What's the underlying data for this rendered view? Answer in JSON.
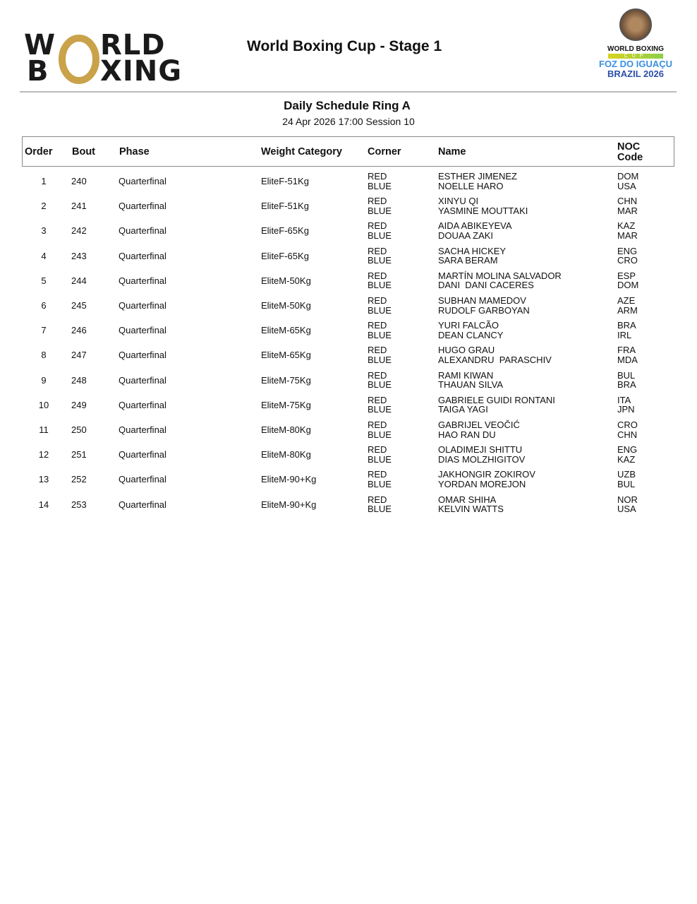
{
  "header": {
    "logo_text": [
      "W",
      "RLD",
      "B",
      "XING"
    ],
    "title": "World Boxing Cup - Stage 1",
    "event_logo": {
      "line1": "WORLD BOXING",
      "line2": "CUP",
      "line3": "FOZ DO IGUAÇU",
      "line4": "BRAZIL 2026"
    },
    "brand_gold": "#c9a24a"
  },
  "schedule": {
    "title": "Daily Schedule Ring A",
    "subtitle": "24 Apr 2026 17:00 Session 10"
  },
  "columns": {
    "order": "Order",
    "bout": "Bout",
    "phase": "Phase",
    "weight": "Weight Category",
    "corner": "Corner",
    "name": "Name",
    "noc1": "NOC",
    "noc2": "Code"
  },
  "rows": [
    {
      "order": "1",
      "bout": "240",
      "phase": "Quarterfinal",
      "weight": "EliteF-51Kg",
      "red": "RED",
      "blue": "BLUE",
      "red_name": "ESTHER JIMENEZ",
      "blue_name": "NOELLE HARO",
      "red_noc": "DOM",
      "blue_noc": "USA"
    },
    {
      "order": "2",
      "bout": "241",
      "phase": "Quarterfinal",
      "weight": "EliteF-51Kg",
      "red": "RED",
      "blue": "BLUE",
      "red_name": "XINYU QI",
      "blue_name": "YASMINE MOUTTAKI",
      "red_noc": "CHN",
      "blue_noc": "MAR"
    },
    {
      "order": "3",
      "bout": "242",
      "phase": "Quarterfinal",
      "weight": "EliteF-65Kg",
      "red": "RED",
      "blue": "BLUE",
      "red_name": "AIDA ABIKEYEVA",
      "blue_name": "DOUAA ZAKI",
      "red_noc": "KAZ",
      "blue_noc": "MAR"
    },
    {
      "order": "4",
      "bout": "243",
      "phase": "Quarterfinal",
      "weight": "EliteF-65Kg",
      "red": "RED",
      "blue": "BLUE",
      "red_name": "SACHA HICKEY",
      "blue_name": "SARA BERAM",
      "red_noc": "ENG",
      "blue_noc": "CRO"
    },
    {
      "order": "5",
      "bout": "244",
      "phase": "Quarterfinal",
      "weight": "EliteM-50Kg",
      "red": "RED",
      "blue": "BLUE",
      "red_name": "MARTÍN MOLINA SALVADOR",
      "blue_name": "DANI  DANI CACERES",
      "red_noc": "ESP",
      "blue_noc": "DOM"
    },
    {
      "order": "6",
      "bout": "245",
      "phase": "Quarterfinal",
      "weight": "EliteM-50Kg",
      "red": "RED",
      "blue": "BLUE",
      "red_name": "SUBHAN MAMEDOV",
      "blue_name": "RUDOLF GARBOYAN",
      "red_noc": "AZE",
      "blue_noc": "ARM"
    },
    {
      "order": "7",
      "bout": "246",
      "phase": "Quarterfinal",
      "weight": "EliteM-65Kg",
      "red": "RED",
      "blue": "BLUE",
      "red_name": "YURI FALCÃO",
      "blue_name": "DEAN CLANCY",
      "red_noc": "BRA",
      "blue_noc": "IRL"
    },
    {
      "order": "8",
      "bout": "247",
      "phase": "Quarterfinal",
      "weight": "EliteM-65Kg",
      "red": "RED",
      "blue": "BLUE",
      "red_name": "HUGO GRAU",
      "blue_name": "ALEXANDRU  PARASCHIV",
      "red_noc": "FRA",
      "blue_noc": "MDA"
    },
    {
      "order": "9",
      "bout": "248",
      "phase": "Quarterfinal",
      "weight": "EliteM-75Kg",
      "red": "RED",
      "blue": "BLUE",
      "red_name": "RAMI KIWAN",
      "blue_name": "THAUAN SILVA",
      "red_noc": "BUL",
      "blue_noc": "BRA"
    },
    {
      "order": "10",
      "bout": "249",
      "phase": "Quarterfinal",
      "weight": "EliteM-75Kg",
      "red": "RED",
      "blue": "BLUE",
      "red_name": "GABRIELE GUIDI RONTANI",
      "blue_name": "TAIGA YAGI",
      "red_noc": "ITA",
      "blue_noc": "JPN"
    },
    {
      "order": "11",
      "bout": "250",
      "phase": "Quarterfinal",
      "weight": "EliteM-80Kg",
      "red": "RED",
      "blue": "BLUE",
      "red_name": "GABRIJEL VEOČIĆ",
      "blue_name": "HAO RAN DU",
      "red_noc": "CRO",
      "blue_noc": "CHN"
    },
    {
      "order": "12",
      "bout": "251",
      "phase": "Quarterfinal",
      "weight": "EliteM-80Kg",
      "red": "RED",
      "blue": "BLUE",
      "red_name": "OLADIMEJI SHITTU",
      "blue_name": "DIAS MOLZHIGITOV",
      "red_noc": "ENG",
      "blue_noc": "KAZ"
    },
    {
      "order": "13",
      "bout": "252",
      "phase": "Quarterfinal",
      "weight": "EliteM-90+Kg",
      "red": "RED",
      "blue": "BLUE",
      "red_name": "JAKHONGIR ZOKIROV",
      "blue_name": "YORDAN MOREJON",
      "red_noc": "UZB",
      "blue_noc": "BUL"
    },
    {
      "order": "14",
      "bout": "253",
      "phase": "Quarterfinal",
      "weight": "EliteM-90+Kg",
      "red": "RED",
      "blue": "BLUE",
      "red_name": "OMAR SHIHA",
      "blue_name": "KELVIN WATTS",
      "red_noc": "NOR",
      "blue_noc": "USA"
    }
  ]
}
